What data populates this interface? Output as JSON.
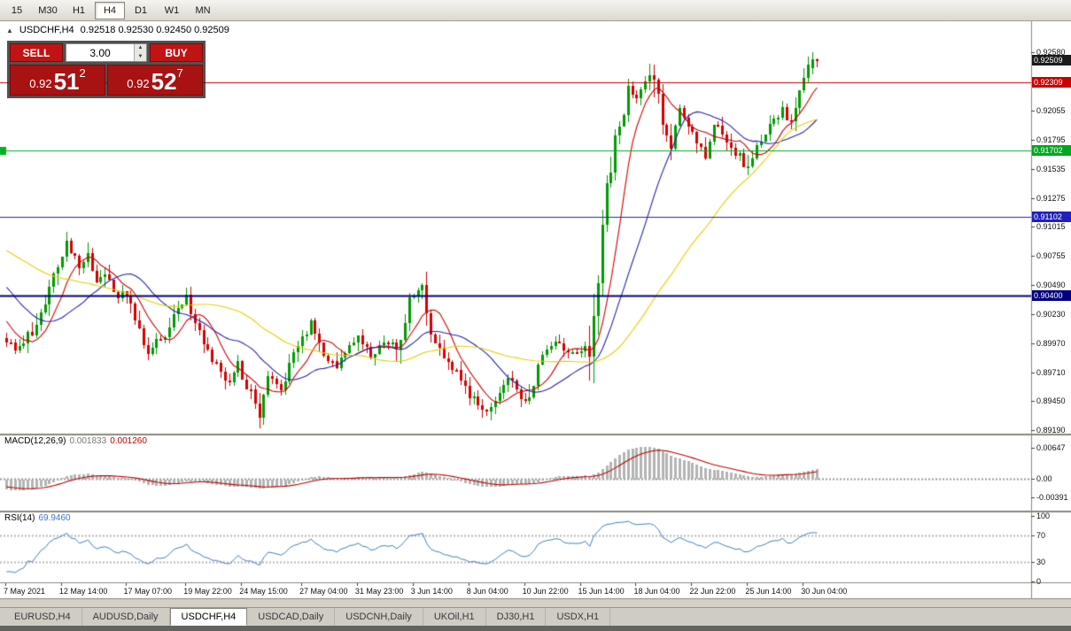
{
  "toolbar": {
    "timeframes": [
      {
        "label": "15",
        "active": false
      },
      {
        "label": "M30",
        "active": false
      },
      {
        "label": "H1",
        "active": false
      },
      {
        "label": "H4",
        "active": true
      },
      {
        "label": "D1",
        "active": false
      },
      {
        "label": "W1",
        "active": false
      },
      {
        "label": "MN",
        "active": false
      }
    ]
  },
  "header": {
    "collapse_icon": "▲",
    "title": "USDCHF,H4",
    "ohlc": "0.92518 0.92530 0.92450 0.92509"
  },
  "trade_panel": {
    "sell_label": "SELL",
    "buy_label": "BUY",
    "lot_value": "3.00",
    "sell_price": {
      "prefix": "0.92",
      "big": "51",
      "sup": "2"
    },
    "buy_price": {
      "prefix": "0.92",
      "big": "52",
      "sup": "7"
    }
  },
  "price_axis": {
    "ticks": [
      "0.92580",
      "0.92055",
      "0.91795",
      "0.91535",
      "0.91275",
      "0.91015",
      "0.90755",
      "0.90490",
      "0.90230",
      "0.89970",
      "0.89710",
      "0.89450",
      "0.89190"
    ],
    "tags": [
      {
        "label": "0.92509",
        "color": "#1a1a1a"
      },
      {
        "label": "0.92309",
        "color": "#cc0000"
      },
      {
        "label": "0.91702",
        "color": "#00a81e"
      },
      {
        "label": "0.91102",
        "color": "#2020c0"
      },
      {
        "label": "0.90400",
        "color": "#000080"
      }
    ]
  },
  "time_axis": [
    {
      "bar": 0,
      "label": "7 May 2021"
    },
    {
      "bar": 13,
      "label": "12 May 14:00"
    },
    {
      "bar": 28,
      "label": "17 May 07:00"
    },
    {
      "bar": 42,
      "label": "19 May 22:00"
    },
    {
      "bar": 55,
      "label": "24 May 15:00"
    },
    {
      "bar": 69,
      "label": "27 May 04:00"
    },
    {
      "bar": 82,
      "label": "31 May 23:00"
    },
    {
      "bar": 95,
      "label": "3 Jun 14:00"
    },
    {
      "bar": 108,
      "label": "8 Jun 04:00"
    },
    {
      "bar": 121,
      "label": "10 Jun 22:00"
    },
    {
      "bar": 134,
      "label": "15 Jun 14:00"
    },
    {
      "bar": 147,
      "label": "18 Jun 04:00"
    },
    {
      "bar": 160,
      "label": "22 Jun 22:00"
    },
    {
      "bar": 173,
      "label": "25 Jun 14:00"
    },
    {
      "bar": 186,
      "label": "30 Jun 04:00"
    }
  ],
  "macd_panel": {
    "label": "MACD(12,26,9)",
    "value_main": "0.001833",
    "value_signal": "0.001260",
    "ticks": [
      {
        "v": 0.00647,
        "label": "0.00647"
      },
      {
        "v": 0,
        "label": "0.00"
      },
      {
        "v": -0.00391,
        "label": "-0.00391"
      }
    ]
  },
  "rsi_panel": {
    "label": "RSI(14)",
    "value": "69.9460",
    "ticks": [
      {
        "v": 100,
        "label": "100"
      },
      {
        "v": 70,
        "label": "70"
      },
      {
        "v": 30,
        "label": "30"
      },
      {
        "v": 0,
        "label": "0"
      }
    ]
  },
  "tabs": [
    {
      "label": "EURUSD,H4",
      "active": false
    },
    {
      "label": "AUDUSD,Daily",
      "active": false
    },
    {
      "label": "USDCHF,H4",
      "active": true
    },
    {
      "label": "USDCAD,Daily",
      "active": false
    },
    {
      "label": "USDCNH,Daily",
      "active": false
    },
    {
      "label": "UKOil,H1",
      "active": false
    },
    {
      "label": "DJ30,H1",
      "active": false
    },
    {
      "label": "USDX,H1",
      "active": false
    }
  ],
  "chart_data": {
    "type": "candlestick",
    "symbol": "USDCHF",
    "timeframe": "H4",
    "bars": 190,
    "seed": 12,
    "ylim": [
      0.8916,
      0.9286
    ],
    "current_price": 0.92509,
    "pre_path": [
      [
        -60,
        0.903
      ],
      [
        -35,
        0.9125
      ],
      [
        -15,
        0.908
      ],
      [
        -1,
        0.9005
      ]
    ],
    "close_path": [
      [
        0,
        0.9002
      ],
      [
        3,
        0.899
      ],
      [
        6,
        0.9008
      ],
      [
        10,
        0.9042
      ],
      [
        14,
        0.9088
      ],
      [
        17,
        0.9066
      ],
      [
        19,
        0.9079
      ],
      [
        21,
        0.9052
      ],
      [
        23,
        0.9062
      ],
      [
        26,
        0.9038
      ],
      [
        28,
        0.9046
      ],
      [
        31,
        0.9012
      ],
      [
        33,
        0.8986
      ],
      [
        35,
        0.8998
      ],
      [
        37,
        0.9004
      ],
      [
        40,
        0.903
      ],
      [
        42,
        0.9038
      ],
      [
        44,
        0.9012
      ],
      [
        48,
        0.8982
      ],
      [
        51,
        0.8962
      ],
      [
        54,
        0.8976
      ],
      [
        57,
        0.8952
      ],
      [
        59,
        0.8938
      ],
      [
        61,
        0.8966
      ],
      [
        64,
        0.8956
      ],
      [
        67,
        0.8984
      ],
      [
        71,
        0.9012
      ],
      [
        74,
        0.899
      ],
      [
        77,
        0.8976
      ],
      [
        80,
        0.8992
      ],
      [
        82,
        0.9006
      ],
      [
        85,
        0.8986
      ],
      [
        88,
        0.8999
      ],
      [
        92,
        0.899
      ],
      [
        94,
        0.9038
      ],
      [
        97,
        0.9046
      ],
      [
        99,
        0.9004
      ],
      [
        102,
        0.8986
      ],
      [
        105,
        0.8972
      ],
      [
        108,
        0.8952
      ],
      [
        111,
        0.8936
      ],
      [
        114,
        0.8948
      ],
      [
        117,
        0.8966
      ],
      [
        120,
        0.8952
      ],
      [
        122,
        0.8942
      ],
      [
        125,
        0.8988
      ],
      [
        128,
        0.8996
      ],
      [
        131,
        0.899
      ],
      [
        134,
        0.8988
      ],
      [
        136,
        0.8996
      ],
      [
        138,
        0.9052
      ],
      [
        139,
        0.9098
      ],
      [
        140,
        0.9136
      ],
      [
        142,
        0.918
      ],
      [
        144,
        0.9206
      ],
      [
        145,
        0.9228
      ],
      [
        147,
        0.9216
      ],
      [
        149,
        0.923
      ],
      [
        151,
        0.9234
      ],
      [
        153,
        0.9196
      ],
      [
        155,
        0.9178
      ],
      [
        157,
        0.9204
      ],
      [
        159,
        0.9192
      ],
      [
        161,
        0.918
      ],
      [
        163,
        0.9166
      ],
      [
        165,
        0.9196
      ],
      [
        167,
        0.9186
      ],
      [
        169,
        0.9176
      ],
      [
        171,
        0.9164
      ],
      [
        173,
        0.915
      ],
      [
        175,
        0.9176
      ],
      [
        177,
        0.9186
      ],
      [
        179,
        0.9196
      ],
      [
        181,
        0.9206
      ],
      [
        183,
        0.9192
      ],
      [
        185,
        0.9218
      ],
      [
        187,
        0.9244
      ],
      [
        189,
        0.9251
      ]
    ],
    "last_bars": [
      [
        0.9244,
        0.9258,
        0.9238,
        0.92518
      ],
      [
        0.92518,
        0.9253,
        0.9245,
        0.92509
      ]
    ],
    "hlines": [
      {
        "price": 0.92309,
        "color": "#cc0000",
        "width": 1
      },
      {
        "price": 0.91702,
        "color": "#00b11e",
        "width": 1
      },
      {
        "price": 0.91102,
        "color": "#2020c8",
        "width": 1
      },
      {
        "price": 0.904,
        "color": "#000080",
        "width": 2
      }
    ],
    "moving_averages": [
      {
        "period": 8,
        "color": "#d40000"
      },
      {
        "period": 20,
        "color": "#2222b4"
      },
      {
        "period": 45,
        "color": "#e6cf00"
      }
    ],
    "up_color": "#009a00",
    "down_color": "#d40000",
    "macd": {
      "fast": 12,
      "slow": 26,
      "signal_period": 9,
      "ylim": [
        -0.0065,
        0.009
      ],
      "hist_color": "#b4b4b4",
      "signal_color": "#c00000"
    },
    "rsi": {
      "period": 14,
      "color": "#4080c0",
      "levels": [
        70,
        30
      ]
    }
  }
}
